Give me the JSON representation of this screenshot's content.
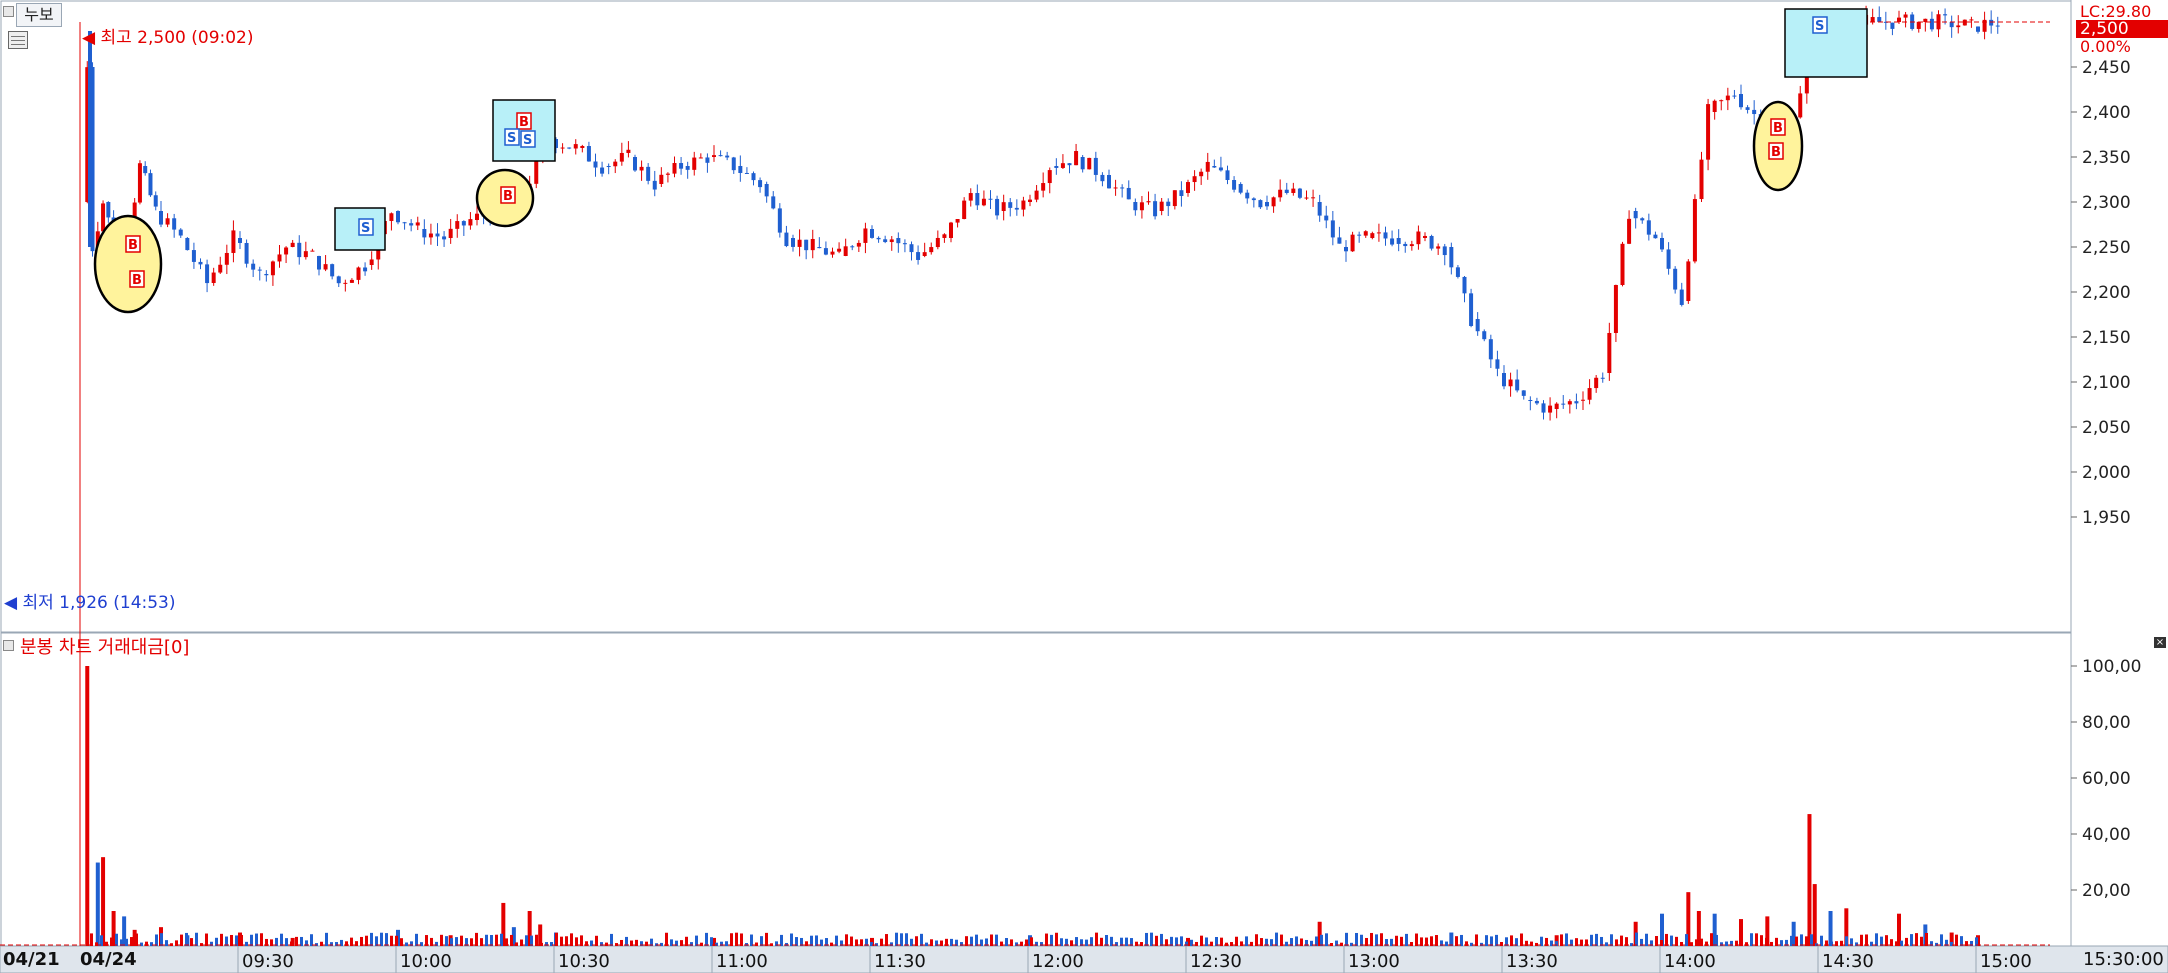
{
  "toolbar": {
    "cumulative_label": "누보"
  },
  "price_panel": {
    "high_marker": "최고 2,500 (09:02)",
    "low_marker": "최저 1,926 (14:53)",
    "lc_label": "LC:29.80",
    "last_price": "2,500",
    "change_pct": "0.00%",
    "y_ticks": [
      "2,450",
      "2,400",
      "2,350",
      "2,300",
      "2,250",
      "2,200",
      "2,150",
      "2,100",
      "2,050",
      "2,000",
      "1,950"
    ]
  },
  "volume_panel": {
    "title": "분봉 차트 거래대금[0]",
    "y_ticks": [
      "100,00",
      "80,00",
      "60,00",
      "40,00",
      "20,00"
    ]
  },
  "x_axis": {
    "prev_date": "04/21",
    "date": "04/24",
    "times": [
      "09:30",
      "10:00",
      "10:30",
      "11:00",
      "11:30",
      "12:00",
      "12:30",
      "13:00",
      "13:30",
      "14:00",
      "14:30",
      "15:00"
    ],
    "end_time": "15:30:00"
  },
  "colors": {
    "up": "#e30000",
    "down": "#1f5fd0",
    "buy_marker_fill": "#fff39c",
    "sell_box_fill": "#b8f0f8"
  },
  "chart_data": [
    {
      "type": "candlestick",
      "title": "",
      "y_range": [
        1900,
        2520
      ],
      "series_close_points": [
        [
          "09:01",
          2300
        ],
        [
          "09:02",
          2450
        ],
        [
          "09:03",
          2250
        ],
        [
          "09:05",
          2300
        ],
        [
          "09:08",
          2240
        ],
        [
          "09:10",
          2270
        ],
        [
          "09:12",
          2340
        ],
        [
          "09:15",
          2290
        ],
        [
          "09:20",
          2260
        ],
        [
          "09:25",
          2210
        ],
        [
          "09:30",
          2260
        ],
        [
          "09:35",
          2220
        ],
        [
          "09:40",
          2250
        ],
        [
          "09:45",
          2240
        ],
        [
          "09:50",
          2210
        ],
        [
          "09:55",
          2230
        ],
        [
          "10:00",
          2290
        ],
        [
          "10:05",
          2270
        ],
        [
          "10:10",
          2260
        ],
        [
          "10:15",
          2280
        ],
        [
          "10:20",
          2290
        ],
        [
          "10:25",
          2310
        ],
        [
          "10:30",
          2370
        ],
        [
          "10:35",
          2360
        ],
        [
          "10:40",
          2340
        ],
        [
          "10:45",
          2350
        ],
        [
          "10:50",
          2320
        ],
        [
          "10:55",
          2340
        ],
        [
          "11:00",
          2350
        ],
        [
          "11:05",
          2340
        ],
        [
          "11:10",
          2320
        ],
        [
          "11:15",
          2260
        ],
        [
          "11:20",
          2250
        ],
        [
          "11:25",
          2240
        ],
        [
          "11:30",
          2270
        ],
        [
          "11:35",
          2260
        ],
        [
          "11:40",
          2240
        ],
        [
          "11:45",
          2260
        ],
        [
          "11:50",
          2310
        ],
        [
          "11:55",
          2290
        ],
        [
          "12:00",
          2300
        ],
        [
          "12:05",
          2340
        ],
        [
          "12:10",
          2350
        ],
        [
          "12:15",
          2330
        ],
        [
          "12:20",
          2300
        ],
        [
          "12:25",
          2290
        ],
        [
          "12:30",
          2310
        ],
        [
          "12:35",
          2340
        ],
        [
          "12:40",
          2320
        ],
        [
          "12:45",
          2300
        ],
        [
          "12:50",
          2310
        ],
        [
          "12:55",
          2300
        ],
        [
          "13:00",
          2250
        ],
        [
          "13:05",
          2260
        ],
        [
          "13:10",
          2260
        ],
        [
          "13:15",
          2260
        ],
        [
          "13:20",
          2250
        ],
        [
          "13:25",
          2170
        ],
        [
          "13:30",
          2110
        ],
        [
          "13:35",
          2080
        ],
        [
          "13:40",
          2070
        ],
        [
          "13:45",
          2080
        ],
        [
          "13:50",
          2110
        ],
        [
          "13:55",
          2290
        ],
        [
          "14:00",
          2260
        ],
        [
          "14:05",
          2190
        ],
        [
          "14:10",
          2400
        ],
        [
          "14:15",
          2420
        ],
        [
          "14:20",
          2390
        ],
        [
          "14:25",
          2380
        ],
        [
          "14:30",
          2470
        ],
        [
          "14:35",
          2490
        ],
        [
          "14:40",
          2500
        ],
        [
          "14:45",
          2500
        ],
        [
          "14:50",
          2500
        ],
        [
          "14:55",
          2500
        ],
        [
          "15:00",
          2495
        ],
        [
          "15:05",
          2500
        ]
      ]
    },
    {
      "type": "bar",
      "title": "분봉 차트 거래대금[0]",
      "y_range": [
        0,
        110
      ],
      "series_points": [
        [
          "09:01",
          104
        ],
        [
          "09:03",
          31
        ],
        [
          "09:04",
          33
        ],
        [
          "09:06",
          13
        ],
        [
          "09:08",
          11
        ],
        [
          "09:10",
          6
        ],
        [
          "09:15",
          7
        ],
        [
          "09:20",
          4
        ],
        [
          "09:30",
          5
        ],
        [
          "09:40",
          3
        ],
        [
          "10:00",
          6
        ],
        [
          "10:10",
          4
        ],
        [
          "10:20",
          16
        ],
        [
          "10:22",
          7
        ],
        [
          "10:25",
          13
        ],
        [
          "10:27",
          8
        ],
        [
          "10:30",
          5
        ],
        [
          "11:00",
          3
        ],
        [
          "11:30",
          3
        ],
        [
          "12:00",
          4
        ],
        [
          "12:30",
          3
        ],
        [
          "12:55",
          9
        ],
        [
          "13:20",
          5
        ],
        [
          "13:40",
          4
        ],
        [
          "13:55",
          9
        ],
        [
          "14:00",
          12
        ],
        [
          "14:05",
          20
        ],
        [
          "14:07",
          13
        ],
        [
          "14:10",
          12
        ],
        [
          "14:15",
          10
        ],
        [
          "14:20",
          11
        ],
        [
          "14:25",
          9
        ],
        [
          "14:28",
          49
        ],
        [
          "14:29",
          23
        ],
        [
          "14:32",
          13
        ],
        [
          "14:35",
          14
        ],
        [
          "14:45",
          12
        ],
        [
          "14:50",
          8
        ],
        [
          "14:55",
          5
        ],
        [
          "15:00",
          4
        ]
      ]
    }
  ]
}
